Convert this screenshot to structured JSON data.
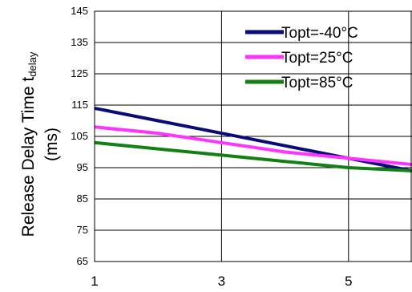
{
  "chart_data": {
    "type": "line",
    "ylabel_main": "Release Delay Time t",
    "ylabel_sub": "delay",
    "ylabel_unit": "(ms)",
    "xlabel": "",
    "xlim": [
      1,
      6
    ],
    "ylim": [
      65,
      145
    ],
    "x_ticks": [
      "1",
      "3",
      "5"
    ],
    "y_ticks": [
      "65",
      "75",
      "85",
      "95",
      "105",
      "115",
      "125",
      "135",
      "145"
    ],
    "grid": true,
    "legend_position": "top-right",
    "series": [
      {
        "name": "Topt=-40°C",
        "color": "#0a0a78",
        "x": [
          1,
          2,
          3,
          4,
          5,
          6
        ],
        "y": [
          114,
          110,
          106,
          102,
          98,
          94
        ]
      },
      {
        "name": "Topt=25°C",
        "color": "#ff33ff",
        "x": [
          1,
          2,
          3,
          4,
          5,
          6
        ],
        "y": [
          108,
          106,
          103,
          100,
          98,
          96
        ]
      },
      {
        "name": "Topt=85°C",
        "color": "#128012",
        "x": [
          1,
          2,
          3,
          4,
          5,
          6
        ],
        "y": [
          103,
          101,
          99,
          97,
          95,
          94
        ]
      }
    ]
  }
}
